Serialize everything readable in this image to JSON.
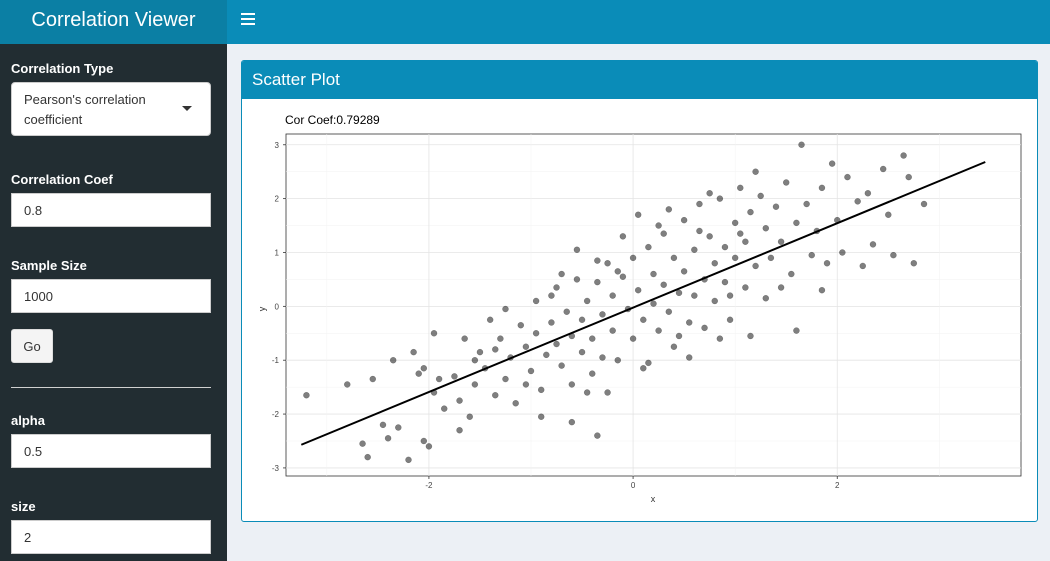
{
  "header": {
    "title": "Correlation Viewer"
  },
  "sidebar": {
    "correlation_type": {
      "label": "Correlation Type",
      "selected": "Pearson's correlation coefficient"
    },
    "correlation_coef": {
      "label": "Correlation Coef",
      "value": "0.8"
    },
    "sample_size": {
      "label": "Sample Size",
      "value": "1000"
    },
    "go_label": "Go",
    "alpha": {
      "label": "alpha",
      "value": "0.5"
    },
    "size": {
      "label": "size",
      "value": "2"
    }
  },
  "box": {
    "title": "Scatter Plot"
  },
  "chart_data": {
    "type": "scatter",
    "title": "Cor Coef:0.79289",
    "xlabel": "x",
    "ylabel": "y",
    "xlim": [
      -3.4,
      3.8
    ],
    "ylim": [
      -3.15,
      3.2
    ],
    "xticks": [
      "-2",
      "0",
      "2"
    ],
    "yticks": [
      "-3",
      "-2",
      "-1",
      "0",
      "1",
      "2",
      "3"
    ],
    "grid": true,
    "regression_line": {
      "x": [
        -3.25,
        3.45
      ],
      "y": [
        -2.57,
        2.68
      ]
    },
    "point_color": "#000000",
    "point_alpha": 0.5,
    "points": [
      [
        -3.2,
        -1.65
      ],
      [
        -2.8,
        -1.45
      ],
      [
        -2.55,
        -1.35
      ],
      [
        -2.65,
        -2.55
      ],
      [
        -2.6,
        -2.8
      ],
      [
        -2.4,
        -2.45
      ],
      [
        -2.3,
        -2.25
      ],
      [
        -2.45,
        -2.2
      ],
      [
        -2.2,
        -2.85
      ],
      [
        -2.05,
        -2.5
      ],
      [
        -2.0,
        -2.6
      ],
      [
        -2.05,
        -1.15
      ],
      [
        -2.1,
        -1.25
      ],
      [
        -1.95,
        -1.6
      ],
      [
        -1.85,
        -1.9
      ],
      [
        -1.75,
        -1.3
      ],
      [
        -1.7,
        -1.75
      ],
      [
        -1.6,
        -2.05
      ],
      [
        -1.55,
        -1.45
      ],
      [
        -1.5,
        -0.85
      ],
      [
        -1.45,
        -1.15
      ],
      [
        -1.35,
        -1.65
      ],
      [
        -1.3,
        -0.6
      ],
      [
        -1.25,
        -1.35
      ],
      [
        -1.2,
        -0.95
      ],
      [
        -1.15,
        -1.8
      ],
      [
        -1.1,
        -0.35
      ],
      [
        -1.05,
        -0.75
      ],
      [
        -1.0,
        -1.2
      ],
      [
        -0.95,
        -0.5
      ],
      [
        -0.9,
        -1.55
      ],
      [
        -0.85,
        -0.9
      ],
      [
        -0.8,
        0.2
      ],
      [
        -0.8,
        -0.3
      ],
      [
        -0.75,
        -0.7
      ],
      [
        -0.7,
        -1.1
      ],
      [
        -0.65,
        -0.1
      ],
      [
        -0.6,
        -0.55
      ],
      [
        -0.6,
        -1.45
      ],
      [
        -0.55,
        0.5
      ],
      [
        -0.5,
        -0.25
      ],
      [
        -0.5,
        -0.85
      ],
      [
        -0.45,
        0.1
      ],
      [
        -0.4,
        -0.6
      ],
      [
        -0.4,
        -1.25
      ],
      [
        -0.35,
        0.45
      ],
      [
        -0.3,
        -0.15
      ],
      [
        -0.3,
        -0.95
      ],
      [
        -0.25,
        0.8
      ],
      [
        -0.2,
        0.2
      ],
      [
        -0.2,
        -0.45
      ],
      [
        -0.15,
        -1.0
      ],
      [
        -0.1,
        1.3
      ],
      [
        -0.1,
        0.55
      ],
      [
        -0.05,
        -0.05
      ],
      [
        0.0,
        -0.6
      ],
      [
        0.0,
        0.9
      ],
      [
        0.05,
        0.3
      ],
      [
        0.1,
        -0.25
      ],
      [
        0.1,
        -1.15
      ],
      [
        0.15,
        1.1
      ],
      [
        0.2,
        0.6
      ],
      [
        0.2,
        0.05
      ],
      [
        0.25,
        -0.45
      ],
      [
        0.3,
        1.35
      ],
      [
        0.3,
        0.4
      ],
      [
        0.35,
        -0.1
      ],
      [
        0.4,
        0.9
      ],
      [
        0.4,
        -0.75
      ],
      [
        0.45,
        0.25
      ],
      [
        0.5,
        1.6
      ],
      [
        0.5,
        0.65
      ],
      [
        0.55,
        -0.3
      ],
      [
        0.6,
        1.05
      ],
      [
        0.6,
        0.2
      ],
      [
        0.65,
        1.9
      ],
      [
        0.7,
        0.5
      ],
      [
        0.7,
        -0.4
      ],
      [
        0.75,
        1.3
      ],
      [
        0.8,
        0.8
      ],
      [
        0.8,
        0.1
      ],
      [
        0.85,
        2.0
      ],
      [
        0.9,
        1.1
      ],
      [
        0.9,
        0.45
      ],
      [
        0.95,
        -0.25
      ],
      [
        1.0,
        1.55
      ],
      [
        1.0,
        0.9
      ],
      [
        1.05,
        2.2
      ],
      [
        1.1,
        1.2
      ],
      [
        1.1,
        0.35
      ],
      [
        1.15,
        1.75
      ],
      [
        1.2,
        0.75
      ],
      [
        1.25,
        2.05
      ],
      [
        1.3,
        1.45
      ],
      [
        1.3,
        0.15
      ],
      [
        1.35,
        0.9
      ],
      [
        1.4,
        1.85
      ],
      [
        1.45,
        1.2
      ],
      [
        1.5,
        2.3
      ],
      [
        1.55,
        0.6
      ],
      [
        1.6,
        1.55
      ],
      [
        1.6,
        -0.45
      ],
      [
        1.65,
        3.0
      ],
      [
        1.7,
        1.9
      ],
      [
        1.75,
        0.95
      ],
      [
        1.8,
        1.4
      ],
      [
        1.85,
        2.2
      ],
      [
        1.9,
        0.8
      ],
      [
        1.95,
        2.65
      ],
      [
        2.0,
        1.6
      ],
      [
        2.05,
        1.0
      ],
      [
        2.1,
        2.4
      ],
      [
        2.2,
        1.95
      ],
      [
        2.25,
        0.75
      ],
      [
        2.3,
        2.1
      ],
      [
        2.35,
        1.15
      ],
      [
        2.45,
        2.55
      ],
      [
        2.5,
        1.7
      ],
      [
        2.55,
        0.95
      ],
      [
        2.65,
        2.8
      ],
      [
        2.7,
        2.4
      ],
      [
        2.75,
        0.8
      ],
      [
        2.85,
        1.9
      ],
      [
        -2.35,
        -1.0
      ],
      [
        -1.9,
        -1.35
      ],
      [
        -1.65,
        -0.6
      ],
      [
        -1.4,
        -0.25
      ],
      [
        -1.25,
        -0.05
      ],
      [
        -0.95,
        0.1
      ],
      [
        -0.7,
        0.6
      ],
      [
        -0.35,
        0.85
      ],
      [
        -0.25,
        -1.6
      ],
      [
        0.15,
        -1.05
      ],
      [
        0.55,
        -0.95
      ],
      [
        0.95,
        0.2
      ],
      [
        1.15,
        -0.55
      ],
      [
        -0.6,
        -2.15
      ],
      [
        -0.9,
        -2.05
      ],
      [
        -0.35,
        -2.4
      ],
      [
        -1.7,
        -2.3
      ],
      [
        0.35,
        1.8
      ],
      [
        0.05,
        1.7
      ],
      [
        0.75,
        2.1
      ],
      [
        1.2,
        2.5
      ],
      [
        -0.45,
        -1.6
      ],
      [
        -1.05,
        -1.45
      ],
      [
        -1.35,
        -0.8
      ],
      [
        -0.15,
        0.65
      ],
      [
        0.45,
        -0.55
      ],
      [
        0.85,
        -0.6
      ],
      [
        1.45,
        0.35
      ],
      [
        1.85,
        0.3
      ],
      [
        -2.15,
        -0.85
      ],
      [
        -1.95,
        -0.5
      ],
      [
        -1.55,
        -1.0
      ],
      [
        -0.75,
        0.35
      ],
      [
        -0.55,
        1.05
      ],
      [
        0.25,
        1.5
      ],
      [
        0.65,
        1.4
      ],
      [
        1.05,
        1.35
      ]
    ]
  }
}
